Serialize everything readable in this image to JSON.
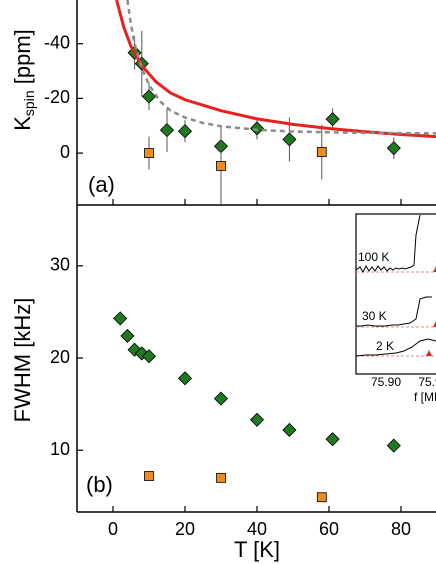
{
  "chart_data": [
    {
      "type": "scatter",
      "panel_label": "(a)",
      "y_label": {
        "main": "K",
        "sub": "spin",
        "unit": " [ppm]"
      },
      "xlim": [
        -10,
        90
      ],
      "ylim": [
        19,
        -56
      ],
      "yticks": [
        -40,
        -20,
        0
      ],
      "series": [
        {
          "color": "#1f7a1f",
          "marker": "diamond",
          "x": [
            6,
            8,
            10,
            15,
            20,
            30,
            40,
            49,
            61,
            78
          ],
          "values": [
            -36.7,
            -32.7,
            -20.7,
            -8.4,
            -8,
            -2.5,
            -9,
            -5,
            -12.4,
            -1.8
          ],
          "errors": [
            6,
            12,
            5,
            8,
            4,
            6,
            4,
            8,
            4,
            4
          ]
        },
        {
          "color": "#f08c1e",
          "marker": "square",
          "x": [
            10,
            30,
            58
          ],
          "values": [
            0,
            4.7,
            -0.4
          ],
          "errors": [
            6,
            15,
            10
          ]
        },
        {
          "color": "#e8201e",
          "style": "solid",
          "x": [
            1,
            3,
            5,
            8,
            12,
            16,
            20,
            25,
            30,
            40,
            50,
            60,
            70,
            80,
            90
          ],
          "values": [
            -56,
            -46,
            -39,
            -32,
            -26,
            -22,
            -19.5,
            -17.5,
            -15.5,
            -12.5,
            -10.5,
            -9,
            -7.8,
            -6.8,
            -6
          ]
        },
        {
          "color": "#8c8c8c",
          "style": "dashed",
          "x": [
            4,
            5,
            6,
            8,
            10,
            13,
            16,
            20,
            25,
            30,
            40,
            50,
            60,
            70,
            80,
            90
          ],
          "values": [
            -56,
            -47,
            -40,
            -31,
            -25,
            -19,
            -15.5,
            -13,
            -11,
            -9.8,
            -8.5,
            -7.9,
            -7.6,
            -7.4,
            -7.3,
            -7.2
          ]
        }
      ]
    },
    {
      "type": "scatter",
      "panel_label": "(b)",
      "y_label": "FWHM [kHz]",
      "x_label": "T [K]",
      "xlim": [
        -10,
        90
      ],
      "xticks": [
        0,
        20,
        40,
        60,
        80
      ],
      "ylim": [
        3.3,
        36.6
      ],
      "yticks": [
        10,
        20,
        30
      ],
      "series": [
        {
          "color": "#1f7a1f",
          "marker": "diamond",
          "x": [
            2,
            4,
            6,
            8,
            10,
            20,
            30,
            40,
            49,
            61,
            78
          ],
          "values": [
            24.3,
            22.4,
            20.9,
            20.5,
            20.2,
            17.8,
            15.6,
            13.3,
            12.2,
            11.2,
            10.5
          ]
        },
        {
          "color": "#f08c1e",
          "marker": "square",
          "x": [
            10,
            30,
            58
          ],
          "values": [
            7.2,
            7,
            4.9
          ]
        }
      ],
      "inset": {
        "labels": [
          "100 K",
          "30 K",
          "2 K"
        ],
        "tick_labels": [
          "75.90",
          "75.9"
        ],
        "x_label": "f [MH"
      }
    }
  ]
}
